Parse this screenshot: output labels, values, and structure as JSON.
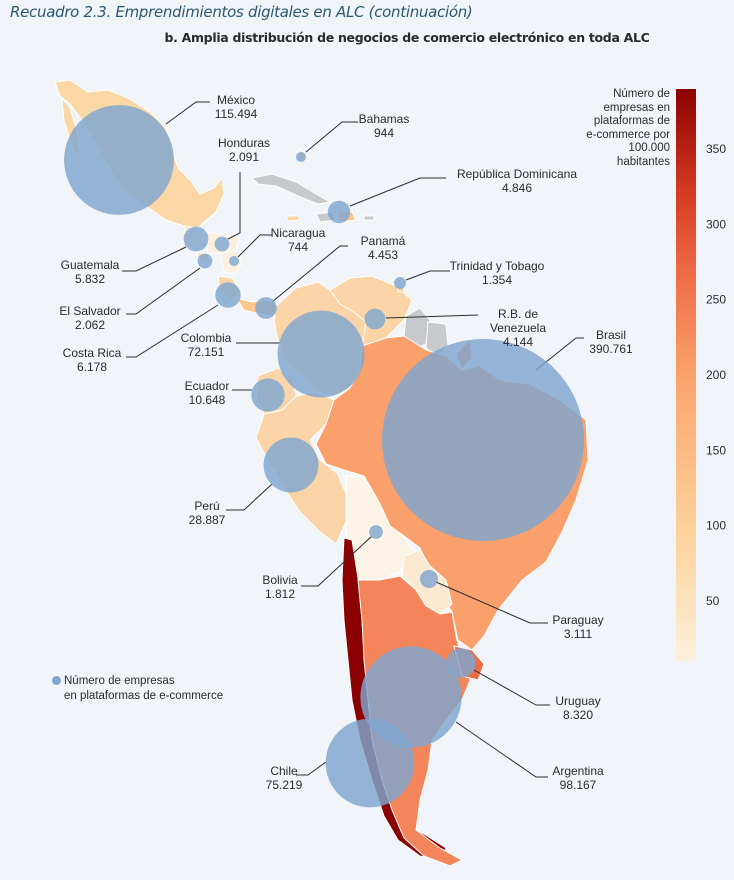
{
  "header": {
    "box_title": "Recuadro 2.3. Emprendimientos digitales en ALC (continuación)",
    "figure_title": "b. Amplia distribución de negocios de comercio electrónico en toda ALC"
  },
  "colorbar": {
    "title_lines": [
      "Número de",
      "empresas en",
      "plataformas de",
      "e-commerce por",
      "100.000",
      "habitantes"
    ],
    "ticks": [
      "350",
      "300",
      "250",
      "200",
      "150",
      "100",
      "50"
    ],
    "tick_values": [
      350,
      300,
      250,
      200,
      150,
      100,
      50
    ],
    "range": [
      10,
      390
    ],
    "colors": [
      "#fdf0dc",
      "#fcd39c",
      "#fba26c",
      "#ee6a45",
      "#d43b22",
      "#8b0000"
    ]
  },
  "legend": {
    "line1": "Número de empresas",
    "line2": "en plataformas de e-commerce",
    "bubble_color": "#7fa6cf"
  },
  "colors": {
    "no_data": "#c8c9cc",
    "background": "#f1f4f8"
  },
  "chart_data": {
    "type": "bubble-map",
    "title": "Amplia distribución de negocios de comercio electrónico en toda ALC",
    "bubble_metric": "Número de empresas en plataformas de e-commerce",
    "choropleth_metric": "Número de empresas en plataformas de e-commerce por 100.000 habitantes",
    "countries": [
      {
        "name": "México",
        "value": "115.494",
        "n": 115494
      },
      {
        "name": "Bahamas",
        "value": "944",
        "n": 944
      },
      {
        "name": "Honduras",
        "value": "2.091",
        "n": 2091
      },
      {
        "name": "República Dominicana",
        "value": "4.846",
        "n": 4846
      },
      {
        "name": "Nicaragua",
        "value": "744",
        "n": 744
      },
      {
        "name": "Panamá",
        "value": "4.453",
        "n": 4453
      },
      {
        "name": "Guatemala",
        "value": "5.832",
        "n": 5832
      },
      {
        "name": "Trinidad y Tobago",
        "value": "1.354",
        "n": 1354
      },
      {
        "name": "El Salvador",
        "value": "2.062",
        "n": 2062
      },
      {
        "name": "R.B. de Venezuela",
        "value": "4.144",
        "n": 4144
      },
      {
        "name": "Costa Rica",
        "value": "6.178",
        "n": 6178
      },
      {
        "name": "Colombia",
        "value": "72.151",
        "n": 72151
      },
      {
        "name": "Brasil",
        "value": "390.761",
        "n": 390761
      },
      {
        "name": "Ecuador",
        "value": "10.648",
        "n": 10648
      },
      {
        "name": "Perú",
        "value": "28.887",
        "n": 28887
      },
      {
        "name": "Bolivia",
        "value": "1.812",
        "n": 1812
      },
      {
        "name": "Paraguay",
        "value": "3.111",
        "n": 3111
      },
      {
        "name": "Uruguay",
        "value": "8.320",
        "n": 8320
      },
      {
        "name": "Argentina",
        "value": "98.167",
        "n": 98167
      },
      {
        "name": "Chile",
        "value": "75.219",
        "n": 75219
      }
    ]
  }
}
